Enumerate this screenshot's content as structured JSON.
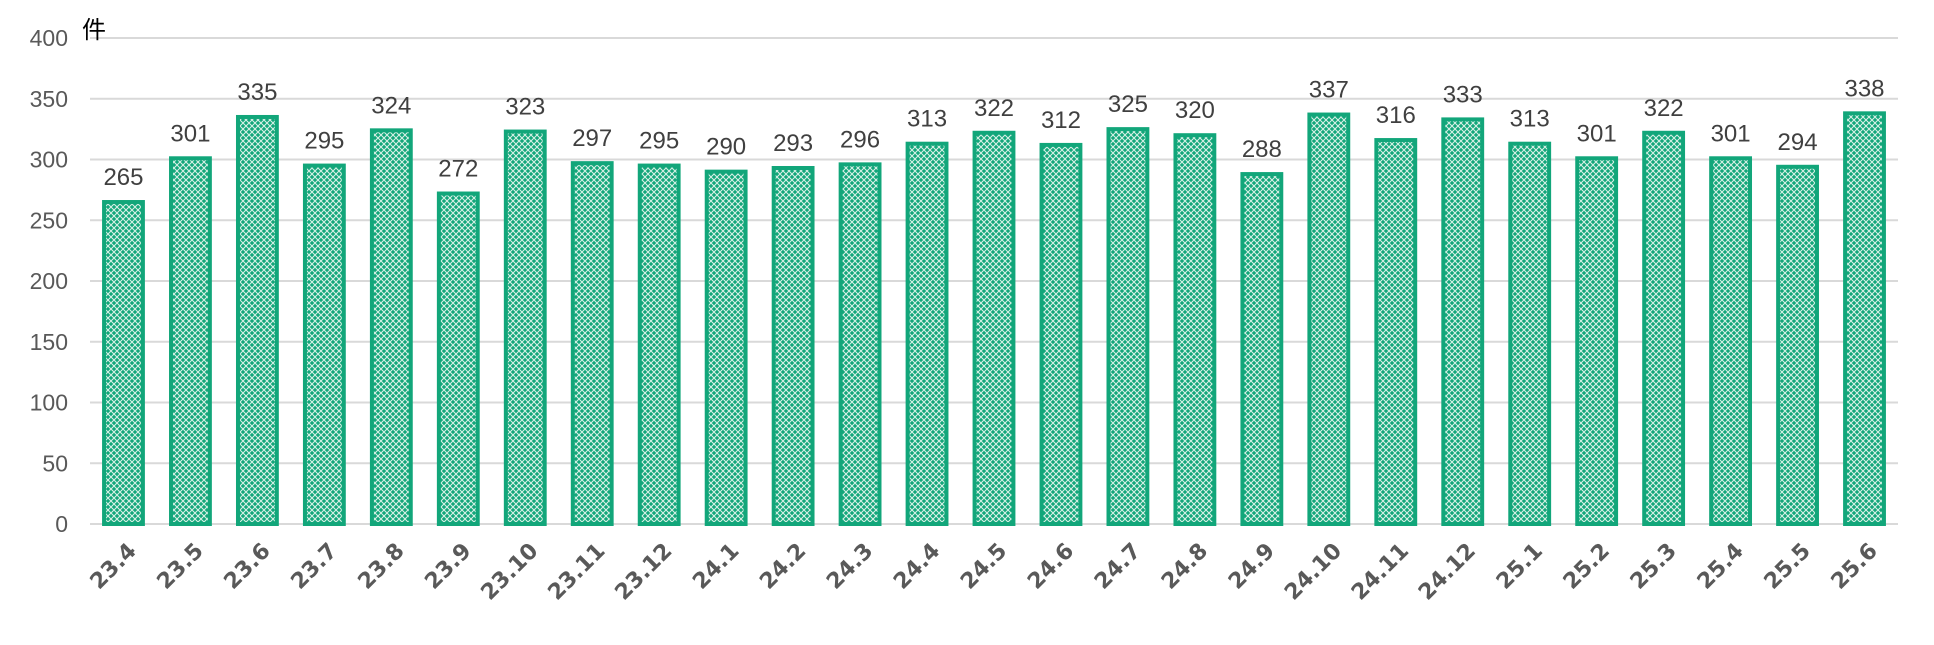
{
  "chart_data": {
    "type": "bar",
    "unit_label": "件",
    "categories": [
      "23.4",
      "23.5",
      "23.6",
      "23.7",
      "23.8",
      "23.9",
      "23.10",
      "23.11",
      "23.12",
      "24.1",
      "24.2",
      "24.3",
      "24.4",
      "24.5",
      "24.6",
      "24.7",
      "24.8",
      "24.9",
      "24.10",
      "24.11",
      "24.12",
      "25.1",
      "25.2",
      "25.3",
      "25.4",
      "25.5",
      "25.6"
    ],
    "values": [
      265,
      301,
      335,
      295,
      324,
      272,
      323,
      297,
      295,
      290,
      293,
      296,
      313,
      322,
      312,
      325,
      320,
      288,
      337,
      316,
      333,
      313,
      301,
      322,
      301,
      294,
      338
    ],
    "ylim": [
      0,
      400
    ],
    "yticks": [
      0,
      50,
      100,
      150,
      200,
      250,
      300,
      350,
      400
    ],
    "grid": true,
    "legend": "none",
    "colors": {
      "bar_stroke": "#12a67a",
      "bar_pattern_light": "#d8f0e6",
      "grid": "#d9d9d9"
    }
  }
}
